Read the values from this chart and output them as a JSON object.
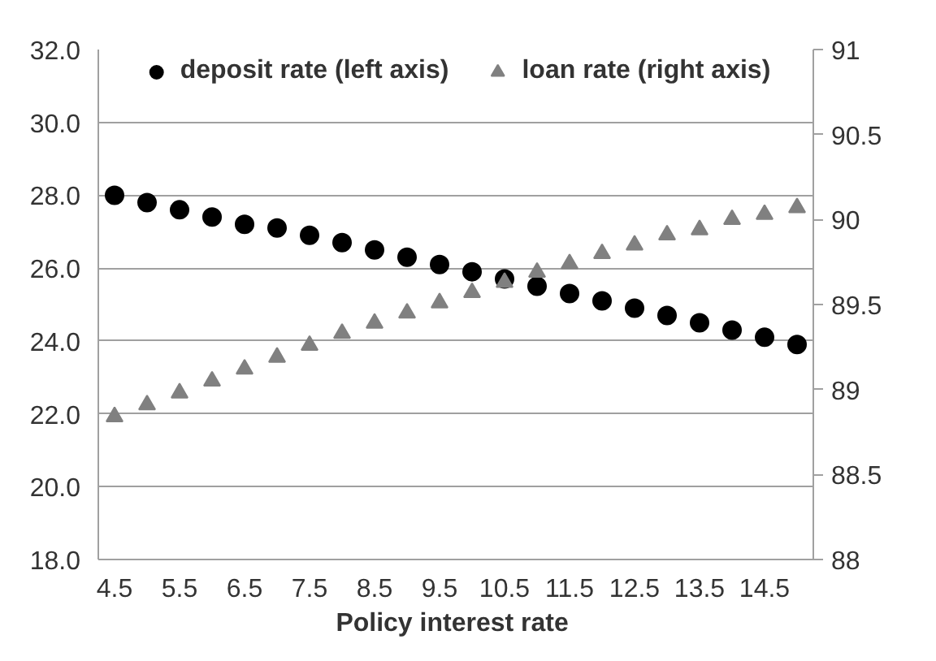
{
  "chart_data": {
    "type": "scatter",
    "xlabel": "Policy interest  rate",
    "x": [
      4.5,
      5,
      5.5,
      6,
      6.5,
      7,
      7.5,
      8,
      8.5,
      9,
      9.5,
      10,
      10.5,
      11,
      11.5,
      12,
      12.5,
      13,
      13.5,
      14,
      14.5,
      15
    ],
    "series": [
      {
        "name": "deposit rate (left axis)",
        "color": "#000000",
        "marker": "circle",
        "values": [
          28.0,
          27.8,
          27.6,
          27.4,
          27.2,
          27.1,
          26.9,
          26.7,
          26.5,
          26.3,
          26.1,
          25.9,
          25.7,
          25.5,
          25.3,
          25.1,
          24.9,
          24.7,
          24.5,
          24.3,
          24.1,
          23.9
        ]
      },
      {
        "name": "loan rate (right axis)",
        "color": "#808080",
        "marker": "triangle",
        "axis": "y2",
        "values": [
          88.84,
          88.91,
          88.98,
          89.05,
          89.12,
          89.19,
          89.26,
          89.33,
          89.39,
          89.45,
          89.51,
          89.57,
          89.63,
          89.69,
          89.74,
          89.8,
          89.85,
          89.91,
          89.94,
          90.0,
          90.03,
          90.07
        ]
      }
    ],
    "xlim": [
      4.25,
      15.25
    ],
    "xticks": [
      4.5,
      5.5,
      6.5,
      7.5,
      8.5,
      9.5,
      10.5,
      11.5,
      12.5,
      13.5,
      14.5
    ],
    "ylim": [
      18,
      32
    ],
    "yticks": [
      {
        "value": 18,
        "label": "18.0"
      },
      {
        "value": 20,
        "label": "20.0"
      },
      {
        "value": 22,
        "label": "22.0"
      },
      {
        "value": 24,
        "label": "24.0"
      },
      {
        "value": 26,
        "label": "26.0"
      },
      {
        "value": 28,
        "label": "28.0"
      },
      {
        "value": 30,
        "label": "30.0"
      },
      {
        "value": 32,
        "label": "32.0"
      }
    ],
    "y2lim": [
      88,
      91
    ],
    "y2ticks": [
      88,
      88.5,
      89,
      89.5,
      90,
      90.5,
      91
    ],
    "grid": "y",
    "legend": "top"
  }
}
